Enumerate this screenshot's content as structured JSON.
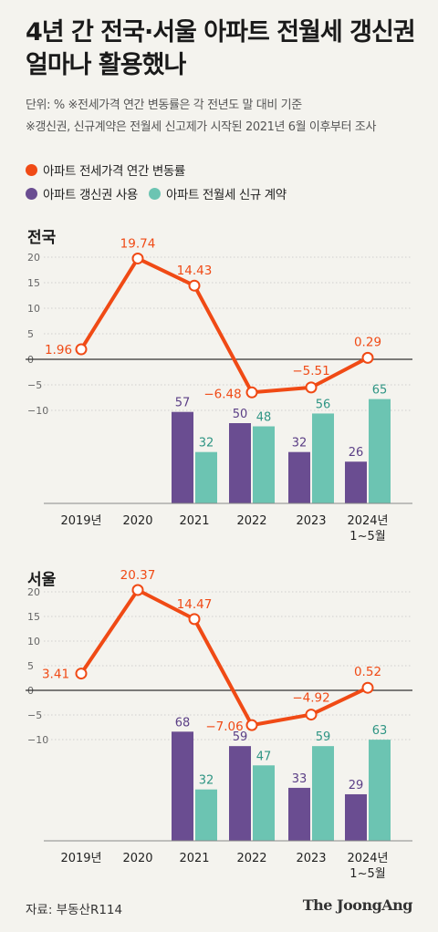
{
  "title_line1": "4년 간 전국·서울 아파트 전월세 갱신권",
  "title_line2": "얼마나 활용했나",
  "note1": "단위: %  ※전세가격 연간 변동률은 각 전년도 말 대비 기준",
  "note2": "※갱신권, 신규계약은 전월세 신고제가 시작된 2021년 6월 이후부터 조사",
  "legend": {
    "line": "아파트 전세가격 연간 변동률",
    "bar1": "아파트 갱신권 사용",
    "bar2": "아파트 전월세 신규 계약"
  },
  "colors": {
    "line": "#f04a15",
    "bar1": "#6a4d91",
    "bar2": "#6cc4b2",
    "bar1_label": "#5b3f86",
    "bar2_label": "#2f9584"
  },
  "source": "자료: 부동산R114",
  "brand": "The JoongAng",
  "chart_data": [
    {
      "type": "bar",
      "title": "전국",
      "categories": [
        "2019년",
        "2020",
        "2021",
        "2022",
        "2023",
        "2024년\n1~5월"
      ],
      "y_ticks": [
        "20",
        "15",
        "10",
        "5",
        "0",
        "−5",
        "−10"
      ],
      "line": {
        "name": "아파트 전세가격 연간 변동률",
        "values": [
          1.96,
          19.74,
          14.43,
          -6.48,
          -5.51,
          0.29
        ],
        "labels": [
          "1.96",
          "19.74",
          "14.43",
          "−6.48",
          "−5.51",
          "0.29"
        ]
      },
      "bars1": {
        "name": "아파트 갱신권 사용",
        "values": [
          null,
          null,
          57,
          50,
          32,
          26
        ],
        "labels": [
          "",
          "",
          "57",
          "50",
          "32",
          "26"
        ]
      },
      "bars2": {
        "name": "아파트 전월세 신규 계약",
        "values": [
          null,
          null,
          32,
          48,
          56,
          65
        ],
        "labels": [
          "",
          "",
          "32",
          "48",
          "56",
          "65"
        ]
      }
    },
    {
      "type": "bar",
      "title": "서울",
      "categories": [
        "2019년",
        "2020",
        "2021",
        "2022",
        "2023",
        "2024년\n1~5월"
      ],
      "y_ticks": [
        "20",
        "15",
        "10",
        "5",
        "0",
        "−5",
        "−10"
      ],
      "line": {
        "name": "아파트 전세가격 연간 변동률",
        "values": [
          3.41,
          20.37,
          14.47,
          -7.06,
          -4.92,
          0.52
        ],
        "labels": [
          "3.41",
          "20.37",
          "14.47",
          "−7.06",
          "−4.92",
          "0.52"
        ]
      },
      "bars1": {
        "name": "아파트 갱신권 사용",
        "values": [
          null,
          null,
          68,
          59,
          33,
          29
        ],
        "labels": [
          "",
          "",
          "68",
          "59",
          "33",
          "29"
        ]
      },
      "bars2": {
        "name": "아파트 전월세 신규 계약",
        "values": [
          null,
          null,
          32,
          47,
          59,
          63
        ],
        "labels": [
          "",
          "",
          "32",
          "47",
          "59",
          "63"
        ]
      }
    }
  ]
}
